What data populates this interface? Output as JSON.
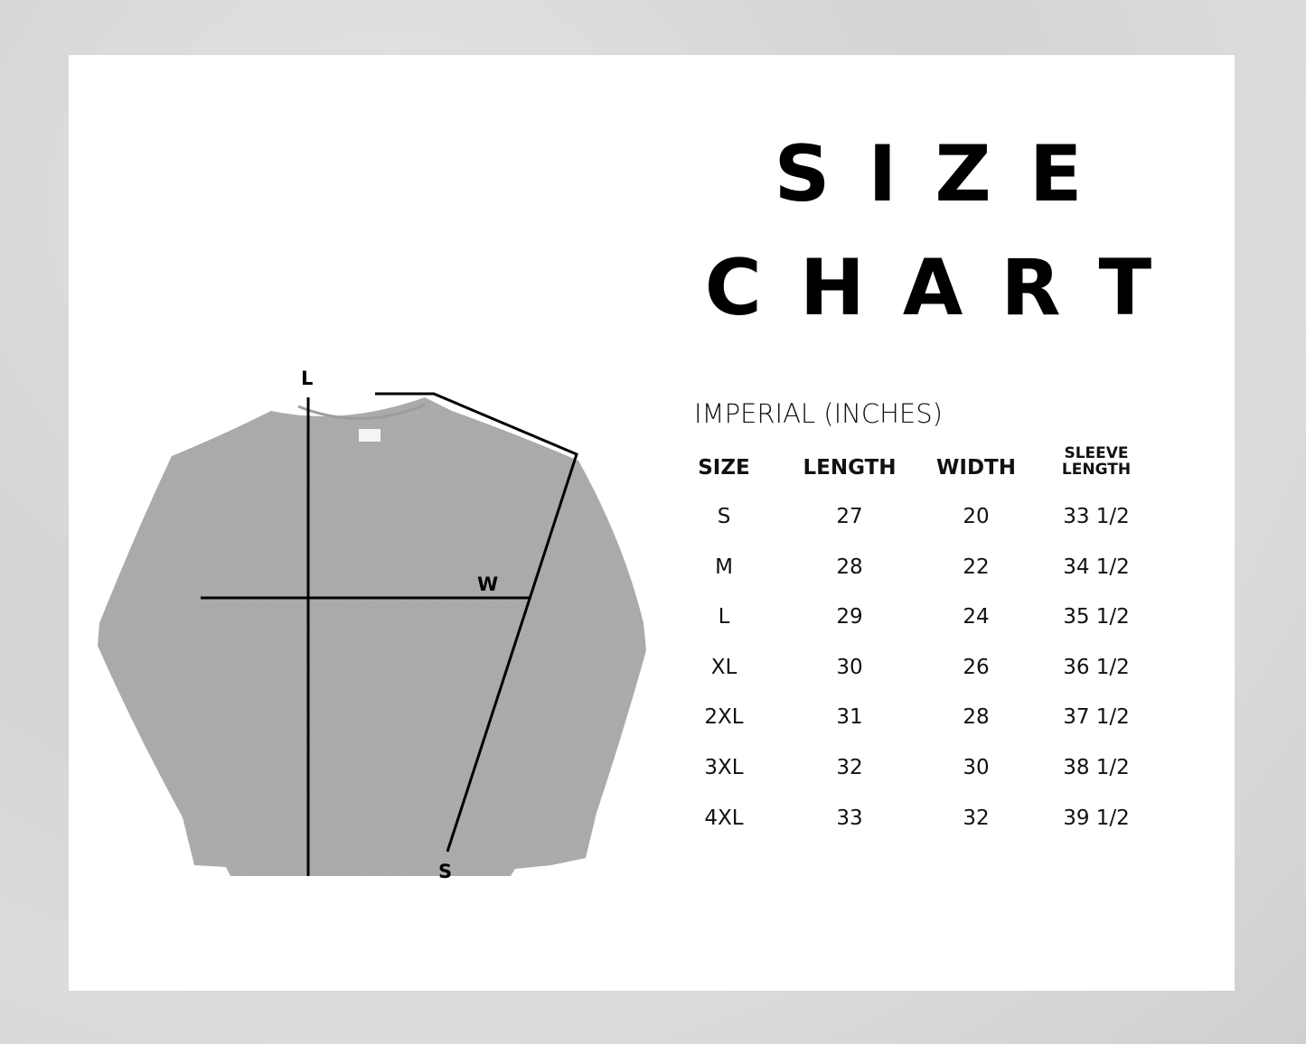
{
  "title_line1": "S I Z E",
  "title_line2": "C H A R T",
  "units_label": "IMPERIAL (INCHES)",
  "diagram": {
    "length_label": "L",
    "width_label": "W",
    "sleeve_label": "S",
    "garment_color": "#a9a9a9",
    "line_color": "#000000"
  },
  "table": {
    "headers": [
      "SIZE",
      "LENGTH",
      "WIDTH",
      "SLEEVE LENGTH"
    ],
    "rows": [
      [
        "S",
        "27",
        "20",
        "33 1/2"
      ],
      [
        "M",
        "28",
        "22",
        "34 1/2"
      ],
      [
        "L",
        "29",
        "24",
        "35 1/2"
      ],
      [
        "XL",
        "30",
        "26",
        "36 1/2"
      ],
      [
        "2XL",
        "31",
        "28",
        "37 1/2"
      ],
      [
        "3XL",
        "32",
        "30",
        "38 1/2"
      ],
      [
        "4XL",
        "33",
        "32",
        "39 1/2"
      ]
    ]
  }
}
